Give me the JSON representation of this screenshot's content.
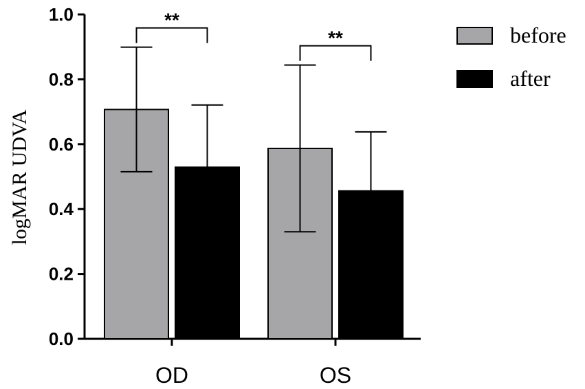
{
  "chart_data": {
    "type": "bar",
    "categories": [
      "OD",
      "OS"
    ],
    "series": [
      {
        "name": "before",
        "color": "#a6a6a8",
        "values": [
          0.707,
          0.587
        ],
        "error": [
          0.192,
          0.257
        ]
      },
      {
        "name": "after",
        "color": "#000000",
        "values": [
          0.529,
          0.456
        ],
        "error": [
          0.192,
          0.182
        ]
      }
    ],
    "ylabel": "logMAR UDVA",
    "xlabel": "",
    "ylim": [
      0,
      1.0
    ],
    "yticks": [
      "0.0",
      "0.2",
      "0.4",
      "0.6",
      "0.8",
      "1.0"
    ],
    "significance": [
      {
        "category": "OD",
        "label": "**"
      },
      {
        "category": "OS",
        "label": "**"
      }
    ],
    "legend_position": "top-right",
    "grid": false
  }
}
